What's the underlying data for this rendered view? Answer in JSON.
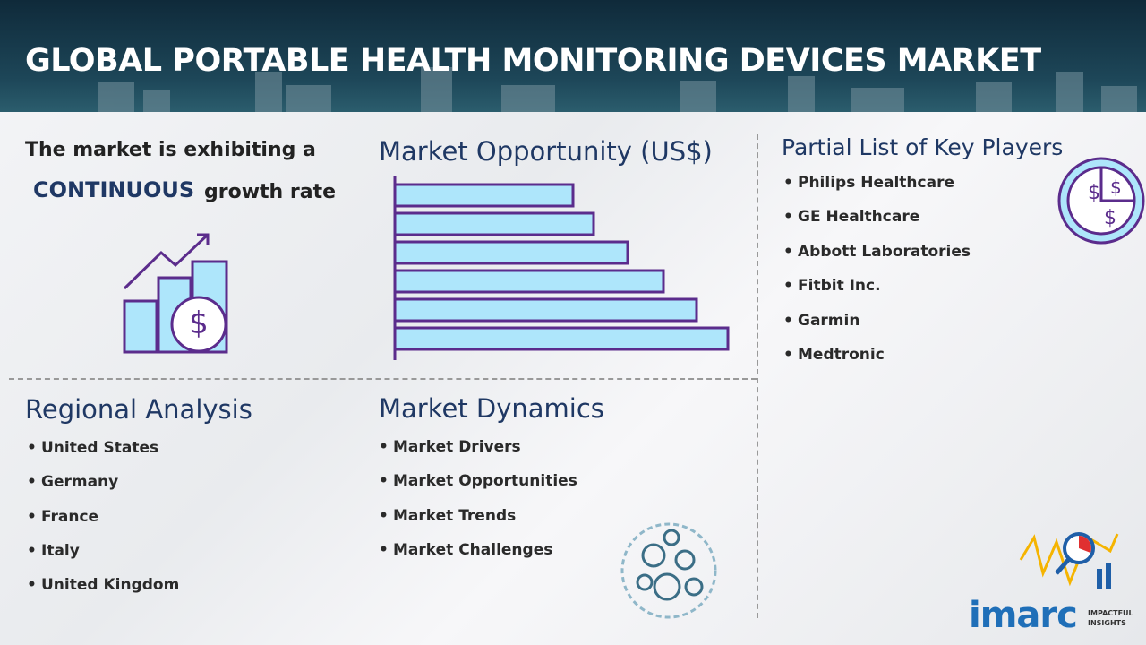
{
  "header": {
    "title": "GLOBAL PORTABLE HEALTH MONITORING DEVICES MARKET"
  },
  "growth": {
    "line1": "The market is exhibiting a",
    "emphasis": "CONTINUOUS",
    "line2_rest": "growth rate"
  },
  "opportunity": {
    "title": "Market Opportunity (US$)"
  },
  "key_players": {
    "title": "Partial List of Key Players",
    "items": [
      "Philips Healthcare",
      "GE Healthcare",
      "Abbott Laboratories",
      "Fitbit Inc.",
      "Garmin",
      "Medtronic"
    ]
  },
  "regional": {
    "title": "Regional Analysis",
    "items": [
      "United States",
      "Germany",
      "France",
      "Italy",
      "United Kingdom"
    ]
  },
  "dynamics": {
    "title": "Market Dynamics",
    "items": [
      "Market Drivers",
      "Market Opportunities",
      "Market Trends",
      "Market Challenges"
    ]
  },
  "logo": {
    "brand": "imarc",
    "tag1": "IMPACTFUL",
    "tag2": "INSIGHTS"
  }
}
